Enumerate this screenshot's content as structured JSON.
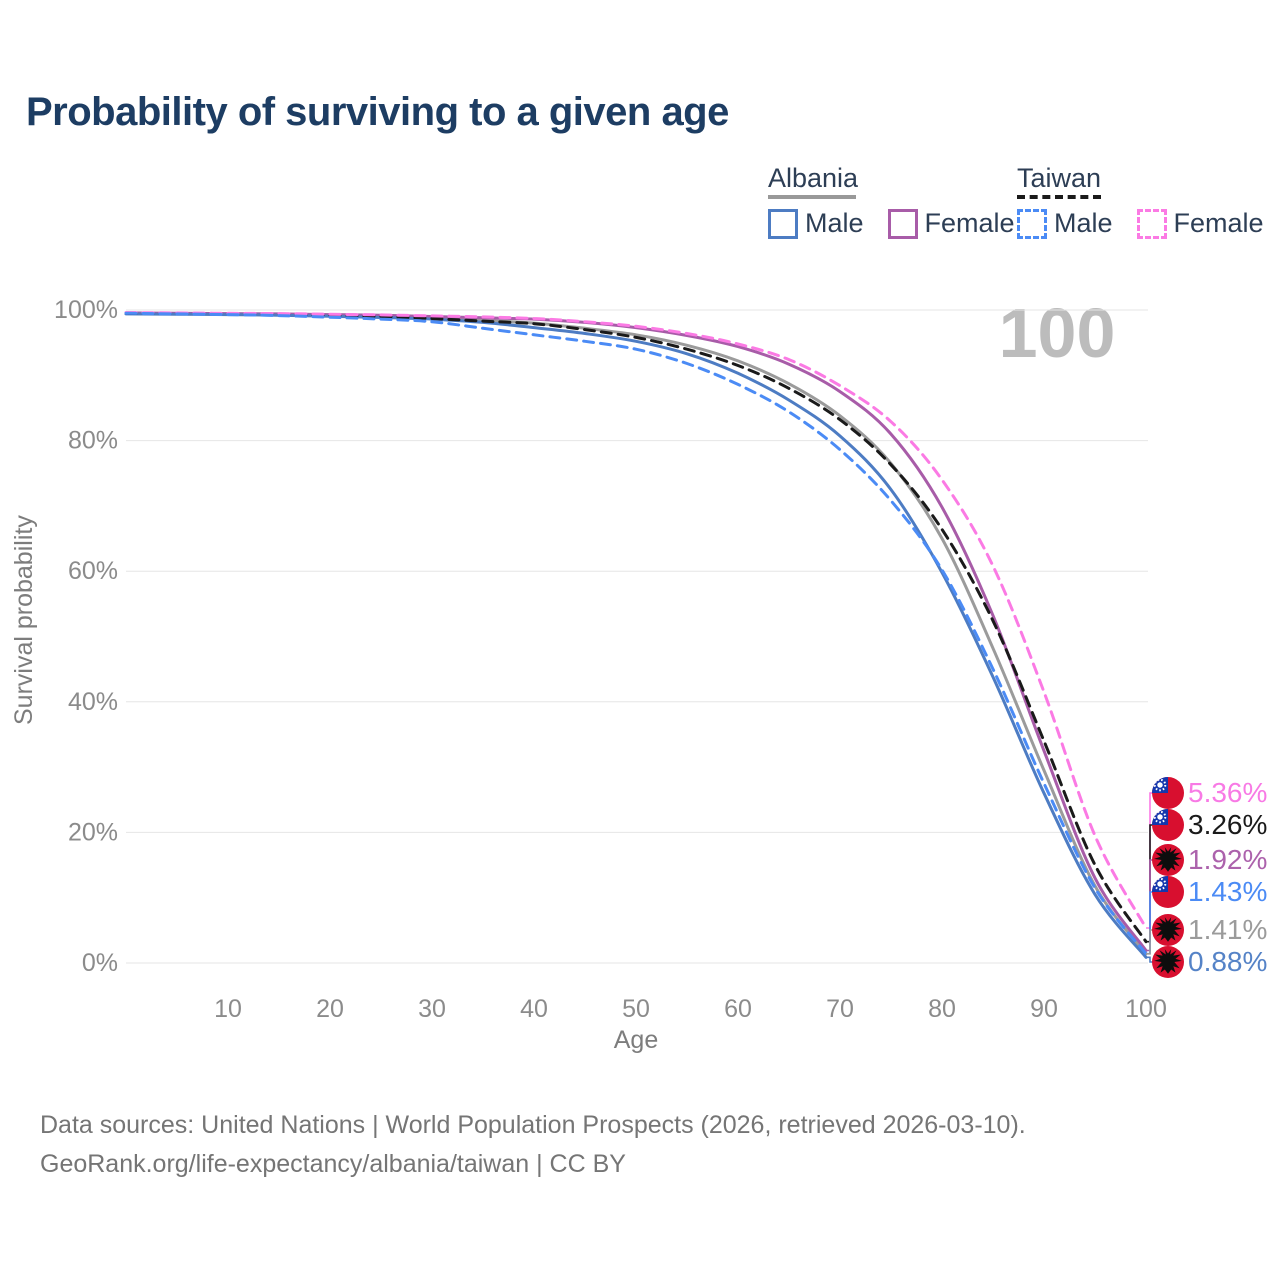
{
  "title": "Probability of surviving to a given age",
  "watermark": "100",
  "legend": {
    "groups": [
      {
        "country": "Albania",
        "line_style": "solid",
        "underline_color": "#999999",
        "items": [
          {
            "label": "Male",
            "color": "#4d7cc3",
            "dashed": false
          },
          {
            "label": "Female",
            "color": "#a85ca8",
            "dashed": false
          }
        ]
      },
      {
        "country": "Taiwan",
        "line_style": "dashed",
        "underline_color": "#1a1a1a",
        "items": [
          {
            "label": "Male",
            "color": "#4b8bf5",
            "dashed": true
          },
          {
            "label": "Female",
            "color": "#fb7ae4",
            "dashed": true
          }
        ]
      }
    ]
  },
  "chart_data": {
    "type": "line",
    "title": "Probability of surviving to a given age",
    "xlabel": "Age",
    "ylabel": "Survival probability",
    "x_ticks": [
      10,
      20,
      30,
      40,
      50,
      60,
      70,
      80,
      90,
      100
    ],
    "y_ticks": [
      0,
      20,
      40,
      60,
      80,
      100
    ],
    "y_tick_labels": [
      "0%",
      "20%",
      "40%",
      "60%",
      "80%",
      "100%"
    ],
    "xlim": [
      0,
      100
    ],
    "ylim": [
      0,
      100
    ],
    "grid": "horizontal",
    "ages": [
      0,
      5,
      10,
      15,
      20,
      25,
      30,
      35,
      40,
      45,
      50,
      55,
      60,
      65,
      70,
      75,
      80,
      85,
      90,
      95,
      100
    ],
    "series": [
      {
        "id": "albania-total",
        "name": "Albania (both sexes)",
        "country": "Albania",
        "sex": "Both",
        "color": "#9b9b9b",
        "dashed": false,
        "end_label": "1.41%",
        "end_value": 1.41,
        "label_color": "#9b9b9b",
        "flag": "albania-flag-icon",
        "values": [
          99.45,
          99.4,
          99.35,
          99.25,
          99.15,
          99.0,
          98.75,
          98.4,
          98.0,
          97.2,
          96.2,
          94.6,
          92.2,
          88.7,
          83.8,
          76.5,
          65.0,
          48.2,
          29.5,
          11.8,
          1.41
        ]
      },
      {
        "id": "albania-female",
        "name": "Albania Female",
        "country": "Albania",
        "sex": "Female",
        "color": "#a85ca8",
        "dashed": false,
        "end_label": "1.92%",
        "end_value": 1.92,
        "label_color": "#ac62ac",
        "flag": "albania-flag-icon",
        "values": [
          99.55,
          99.5,
          99.45,
          99.4,
          99.3,
          99.2,
          99.0,
          98.8,
          98.6,
          98.1,
          97.3,
          96.1,
          94.4,
          91.7,
          87.5,
          81.0,
          69.8,
          53.2,
          32.5,
          13.0,
          1.92
        ]
      },
      {
        "id": "albania-male",
        "name": "Albania Male",
        "country": "Albania",
        "sex": "Male",
        "color": "#4d7cc3",
        "dashed": false,
        "end_label": "0.88%",
        "end_value": 0.88,
        "label_color": "#5583c7",
        "flag": "albania-flag-icon",
        "values": [
          99.4,
          99.35,
          99.3,
          99.2,
          99.05,
          98.85,
          98.6,
          98.1,
          97.3,
          96.4,
          95.2,
          93.3,
          90.3,
          86.2,
          80.7,
          72.5,
          59.8,
          43.8,
          26.0,
          10.5,
          0.88
        ]
      },
      {
        "id": "taiwan-total",
        "name": "Taiwan (both sexes)",
        "country": "Taiwan",
        "sex": "Both",
        "color": "#1a1a1a",
        "dashed": true,
        "end_label": "3.26%",
        "end_value": 3.26,
        "label_color": "#1a1a1a",
        "flag": "taiwan-flag-icon",
        "values": [
          99.5,
          99.45,
          99.4,
          99.3,
          99.2,
          99.0,
          98.7,
          98.3,
          97.9,
          97.0,
          95.8,
          94.0,
          91.5,
          88.0,
          83.2,
          76.3,
          66.4,
          52.4,
          34.0,
          15.0,
          3.26
        ]
      },
      {
        "id": "taiwan-female",
        "name": "Taiwan Female",
        "country": "Taiwan",
        "sex": "Female",
        "color": "#fb7ae4",
        "dashed": true,
        "end_label": "5.36%",
        "end_value": 5.36,
        "label_color": "#f87ae5",
        "flag": "taiwan-flag-icon",
        "values": [
          99.6,
          99.55,
          99.5,
          99.45,
          99.35,
          99.25,
          99.1,
          98.95,
          98.7,
          98.2,
          97.5,
          96.4,
          94.8,
          92.4,
          88.4,
          82.9,
          74.0,
          60.8,
          41.5,
          19.5,
          5.36
        ]
      },
      {
        "id": "taiwan-male",
        "name": "Taiwan Male",
        "country": "Taiwan",
        "sex": "Male",
        "color": "#4b8bf5",
        "dashed": true,
        "end_label": "1.43%",
        "end_value": 1.43,
        "label_color": "#4b8bf5",
        "flag": "taiwan-flag-icon",
        "values": [
          99.5,
          99.4,
          99.3,
          99.15,
          98.9,
          98.6,
          98.2,
          97.2,
          96.2,
          95.2,
          94.0,
          91.8,
          88.6,
          84.4,
          78.6,
          70.8,
          60.2,
          45.0,
          27.5,
          11.5,
          1.43
        ]
      }
    ],
    "flag_colors": {
      "flag_red": "#d80f2f",
      "taiwan_canton_blue": "#1437ad",
      "eagle_black": "#0d0d0d"
    }
  },
  "footer": {
    "line1": "Data sources: United Nations | World Population Prospects (2026, retrieved 2026-03-10).",
    "line2": "GeoRank.org/life-expectancy/albania/taiwan | CC BY"
  }
}
